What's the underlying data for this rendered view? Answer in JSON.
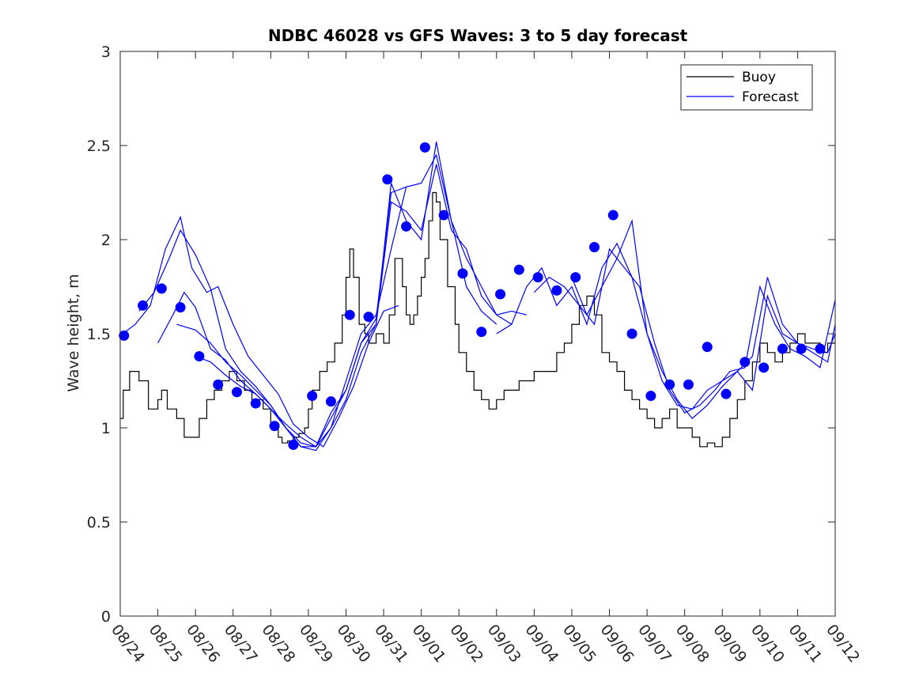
{
  "chart_data": {
    "type": "line",
    "title": "NDBC 46028 vs GFS Waves: 3 to 5 day forecast",
    "xlabel": "",
    "ylabel": "Wave height, m",
    "ylim": [
      0,
      3
    ],
    "yticks": [
      0,
      0.5,
      1,
      1.5,
      2,
      2.5,
      3
    ],
    "ytick_labels": [
      "0",
      "0.5",
      "1",
      "1.5",
      "2",
      "2.5",
      "3"
    ],
    "xlim_days": [
      0,
      19
    ],
    "xtick_labels": [
      "08/24",
      "08/25",
      "08/26",
      "08/27",
      "08/28",
      "08/29",
      "08/30",
      "08/31",
      "09/01",
      "09/02",
      "09/03",
      "09/04",
      "09/05",
      "09/06",
      "09/07",
      "09/08",
      "09/09",
      "09/10",
      "09/11",
      "09/12"
    ],
    "x_unit": "days since 08/24 00:00",
    "legend": {
      "position": "top-right",
      "entries": [
        {
          "name": "Buoy",
          "color": "#000000"
        },
        {
          "name": "Forecast",
          "color": "#0000ff"
        }
      ]
    },
    "colors": {
      "buoy": "#000000",
      "forecast": "#0000ff",
      "axis": "#262626",
      "background": "#ffffff"
    },
    "series": [
      {
        "name": "Buoy",
        "x": [
          0.0,
          0.08,
          0.25,
          0.5,
          0.75,
          1.0,
          1.1,
          1.25,
          1.5,
          1.7,
          1.85,
          2.1,
          2.3,
          2.5,
          2.7,
          2.9,
          3.1,
          3.3,
          3.5,
          3.8,
          4.0,
          4.2,
          4.3,
          4.45,
          4.6,
          4.75,
          4.9,
          5.0,
          5.1,
          5.3,
          5.5,
          5.7,
          5.9,
          6.0,
          6.1,
          6.2,
          6.35,
          6.5,
          6.6,
          6.8,
          7.0,
          7.15,
          7.3,
          7.5,
          7.6,
          7.7,
          7.8,
          7.9,
          8.0,
          8.1,
          8.2,
          8.3,
          8.4,
          8.5,
          8.7,
          8.9,
          9.0,
          9.2,
          9.4,
          9.6,
          9.8,
          10.0,
          10.2,
          10.4,
          10.6,
          10.8,
          11.0,
          11.2,
          11.4,
          11.6,
          11.8,
          12.0,
          12.2,
          12.4,
          12.6,
          12.8,
          13.0,
          13.2,
          13.4,
          13.6,
          13.8,
          14.0,
          14.2,
          14.4,
          14.6,
          14.8,
          15.0,
          15.2,
          15.4,
          15.6,
          15.8,
          16.0,
          16.2,
          16.4,
          16.6,
          16.8,
          17.0,
          17.2,
          17.4,
          17.6,
          17.8,
          18.0,
          18.2,
          18.4,
          18.6,
          18.8,
          19.0
        ],
        "values": [
          1.05,
          1.2,
          1.3,
          1.25,
          1.1,
          1.15,
          1.2,
          1.1,
          1.05,
          0.95,
          0.95,
          1.05,
          1.15,
          1.2,
          1.25,
          1.3,
          1.25,
          1.2,
          1.15,
          1.1,
          1.0,
          0.95,
          0.92,
          0.93,
          0.95,
          0.97,
          1.0,
          1.1,
          1.2,
          1.3,
          1.35,
          1.45,
          1.6,
          1.8,
          1.95,
          1.8,
          1.55,
          1.5,
          1.45,
          1.5,
          1.45,
          1.6,
          1.9,
          1.75,
          1.6,
          1.55,
          1.6,
          1.7,
          1.8,
          1.9,
          2.1,
          2.25,
          2.2,
          2.0,
          1.75,
          1.55,
          1.4,
          1.3,
          1.2,
          1.15,
          1.1,
          1.15,
          1.2,
          1.2,
          1.25,
          1.25,
          1.3,
          1.3,
          1.3,
          1.4,
          1.45,
          1.55,
          1.65,
          1.7,
          1.6,
          1.4,
          1.35,
          1.3,
          1.2,
          1.15,
          1.1,
          1.05,
          1.0,
          1.05,
          1.1,
          1.0,
          1.0,
          0.95,
          0.9,
          0.92,
          0.9,
          0.95,
          1.05,
          1.15,
          1.25,
          1.35,
          1.45,
          1.4,
          1.35,
          1.4,
          1.45,
          1.5,
          1.45,
          1.45,
          1.4,
          1.45,
          1.5
        ]
      },
      {
        "name": "Forecast",
        "runs": [
          {
            "x": [
              0.0,
              0.4,
              0.8,
              1.2,
              1.6,
              1.9,
              2.3,
              2.6,
              3.0,
              3.4,
              3.8,
              4.2,
              4.6,
              5.0,
              5.4,
              5.8,
              6.2,
              6.6,
              7.0,
              7.4
            ],
            "values": [
              1.49,
              1.55,
              1.65,
              1.95,
              2.12,
              1.85,
              1.72,
              1.75,
              1.55,
              1.38,
              1.28,
              1.18,
              1.02,
              0.95,
              0.9,
              1.05,
              1.22,
              1.45,
              1.62,
              1.65
            ]
          },
          {
            "x": [
              0.5,
              0.9,
              1.3,
              1.6,
              2.0,
              2.4,
              2.8,
              3.2,
              3.6,
              4.0,
              4.4,
              4.8,
              5.2,
              5.6,
              6.0,
              6.4,
              6.8,
              7.2,
              7.6
            ],
            "values": [
              1.62,
              1.72,
              1.9,
              2.05,
              1.92,
              1.74,
              1.42,
              1.3,
              1.22,
              1.12,
              1.0,
              0.92,
              0.9,
              1.0,
              1.25,
              1.5,
              1.6,
              1.95,
              2.28
            ]
          },
          {
            "x": [
              1.0,
              1.4,
              1.7,
              2.0,
              2.4,
              2.8,
              3.2,
              3.6,
              4.0,
              4.4,
              4.8,
              5.2,
              5.6,
              6.0,
              6.4,
              6.8,
              7.2,
              7.6,
              8.0,
              8.4,
              8.8,
              9.2,
              9.6,
              10.0
            ],
            "values": [
              1.45,
              1.6,
              1.72,
              1.64,
              1.42,
              1.36,
              1.25,
              1.18,
              1.1,
              1.02,
              0.95,
              0.9,
              1.08,
              1.2,
              1.45,
              1.58,
              2.25,
              2.28,
              2.3,
              2.45,
              2.1,
              1.75,
              1.62,
              1.55
            ]
          },
          {
            "x": [
              1.5,
              2.0,
              2.4,
              2.8,
              3.2,
              3.6,
              4.0,
              4.4,
              4.8,
              5.2,
              5.6,
              6.0,
              6.4,
              6.8,
              7.2,
              7.6,
              8.0,
              8.4,
              8.8,
              9.2,
              9.6,
              10.0,
              10.4
            ],
            "values": [
              1.55,
              1.52,
              1.45,
              1.35,
              1.28,
              1.2,
              1.12,
              1.0,
              0.9,
              0.9,
              1.05,
              1.2,
              1.45,
              1.55,
              2.2,
              2.15,
              2.05,
              2.4,
              2.05,
              1.95,
              1.7,
              1.6,
              1.55
            ]
          },
          {
            "x": [
              2.0,
              2.4,
              2.8,
              3.2,
              3.6,
              4.0,
              4.4,
              4.8,
              5.2,
              5.6,
              6.0,
              6.4,
              6.8,
              7.2,
              7.6,
              8.0,
              8.4,
              8.8,
              9.2,
              9.6,
              10.0,
              10.4,
              10.8
            ],
            "values": [
              1.38,
              1.35,
              1.28,
              1.22,
              1.18,
              1.1,
              1.0,
              0.9,
              0.88,
              1.0,
              1.15,
              1.4,
              1.55,
              2.3,
              2.1,
              2.0,
              2.52,
              2.1,
              1.9,
              1.75,
              1.6,
              1.62,
              1.6
            ]
          },
          {
            "x": [
              10.0,
              10.4,
              10.8,
              11.2,
              11.6,
              12.0,
              12.4,
              12.8,
              13.2,
              13.6,
              14.0,
              14.4,
              14.8,
              15.2,
              15.6,
              16.0,
              16.4,
              16.8,
              17.2,
              17.6,
              18.0,
              18.4,
              18.8,
              19.0
            ],
            "values": [
              1.5,
              1.55,
              1.75,
              1.85,
              1.65,
              1.75,
              1.55,
              1.85,
              1.98,
              1.8,
              1.5,
              1.25,
              1.12,
              1.1,
              1.2,
              1.25,
              1.3,
              1.38,
              1.8,
              1.55,
              1.45,
              1.4,
              1.35,
              1.55
            ]
          },
          {
            "x": [
              11.0,
              11.4,
              11.8,
              12.2,
              12.6,
              13.0,
              13.4,
              13.8,
              14.2,
              14.6,
              15.0,
              15.4,
              15.8,
              16.2,
              16.6,
              17.0,
              17.4,
              17.8,
              18.2,
              18.6,
              19.0
            ],
            "values": [
              1.72,
              1.8,
              1.75,
              1.65,
              1.55,
              1.95,
              1.85,
              1.75,
              1.45,
              1.2,
              1.08,
              1.12,
              1.2,
              1.3,
              1.32,
              1.75,
              1.55,
              1.42,
              1.38,
              1.32,
              1.68
            ]
          },
          {
            "x": [
              12.0,
              12.4,
              12.8,
              13.2,
              13.6,
              14.0,
              14.4,
              14.8,
              15.2,
              15.6,
              16.0,
              16.4,
              16.8,
              17.2,
              17.6,
              18.0,
              18.4,
              18.8,
              19.0
            ],
            "values": [
              1.8,
              1.6,
              1.75,
              1.9,
              2.1,
              1.5,
              1.3,
              1.15,
              1.05,
              1.12,
              1.22,
              1.3,
              1.2,
              1.7,
              1.5,
              1.45,
              1.42,
              1.4,
              1.5
            ]
          }
        ]
      },
      {
        "name": "Forecast markers",
        "x": [
          0.1,
          0.6,
          1.1,
          1.6,
          2.1,
          2.6,
          3.1,
          3.6,
          4.1,
          4.6,
          5.1,
          5.6,
          6.1,
          6.6,
          7.1,
          7.6,
          8.1,
          8.6,
          9.1,
          9.6,
          10.1,
          10.6,
          11.1,
          11.6,
          12.1,
          12.6,
          13.1,
          13.6,
          14.1,
          14.6,
          15.1,
          15.6,
          16.1,
          16.6,
          17.1,
          17.6,
          18.1,
          18.6
        ],
        "values": [
          1.49,
          1.65,
          1.74,
          1.64,
          1.38,
          1.23,
          1.19,
          1.13,
          1.01,
          0.91,
          1.17,
          1.14,
          1.6,
          1.59,
          2.32,
          2.07,
          2.49,
          2.13,
          1.82,
          1.51,
          1.71,
          1.84,
          1.8,
          1.73,
          1.8,
          1.96,
          2.13,
          1.5,
          1.17,
          1.23,
          1.23,
          1.43,
          1.18,
          1.35,
          1.32,
          1.42,
          1.42,
          1.42
        ]
      }
    ]
  }
}
